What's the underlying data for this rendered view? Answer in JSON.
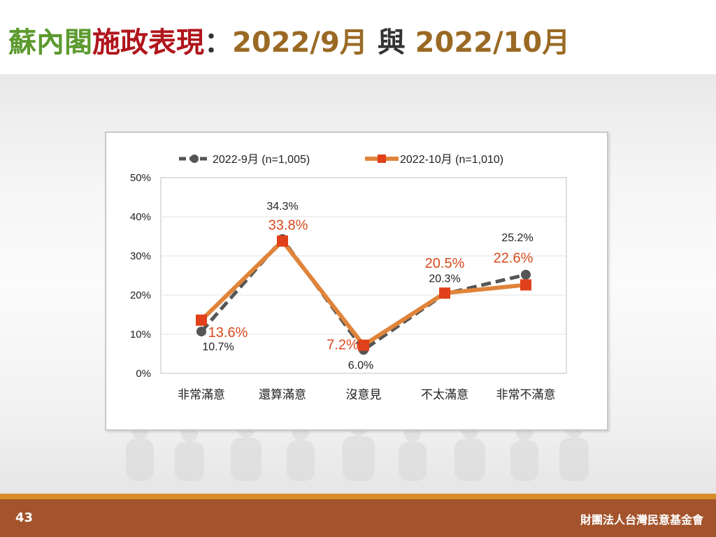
{
  "slide": {
    "title_part1": "蘇內閣",
    "title_part2": "施政表現",
    "title_colon": "：",
    "title_part3": "2022/9月",
    "title_part4": "與",
    "title_part5": "2022/10月",
    "page_number": "43",
    "organization": "財團法人台灣民意基金會"
  },
  "colors": {
    "title_green": "#5c9a2e",
    "title_red": "#b0151c",
    "title_brown": "#9a6a24",
    "series_sep": "#555555",
    "series_oct": "#e0843a",
    "marker_oct": "#e0411a",
    "label_oct": "#d9491d",
    "footer": "#a4542c",
    "footer_line": "#d98d2a"
  },
  "chart_data": {
    "type": "line",
    "categories": [
      "非常滿意",
      "還算滿意",
      "沒意見",
      "不太滿意",
      "非常不滿意"
    ],
    "ylim": [
      0,
      50
    ],
    "yticks": [
      "0%",
      "10%",
      "20%",
      "30%",
      "40%",
      "50%"
    ],
    "grid": true,
    "legend_position": "top",
    "series": [
      {
        "name": "2022-9月  (n=1,005)",
        "values": [
          10.7,
          34.3,
          6.0,
          20.3,
          25.2
        ],
        "labels": [
          "10.7%",
          "34.3%",
          "6.0%",
          "20.3%",
          "25.2%"
        ],
        "style": "dashed-dark-circle"
      },
      {
        "name": "2022-10月  (n=1,010)",
        "values": [
          13.6,
          33.8,
          7.2,
          20.5,
          22.6
        ],
        "labels": [
          "13.6%",
          "33.8%",
          "7.2%",
          "20.5%",
          "22.6%"
        ],
        "style": "solid-orange-square"
      }
    ]
  }
}
